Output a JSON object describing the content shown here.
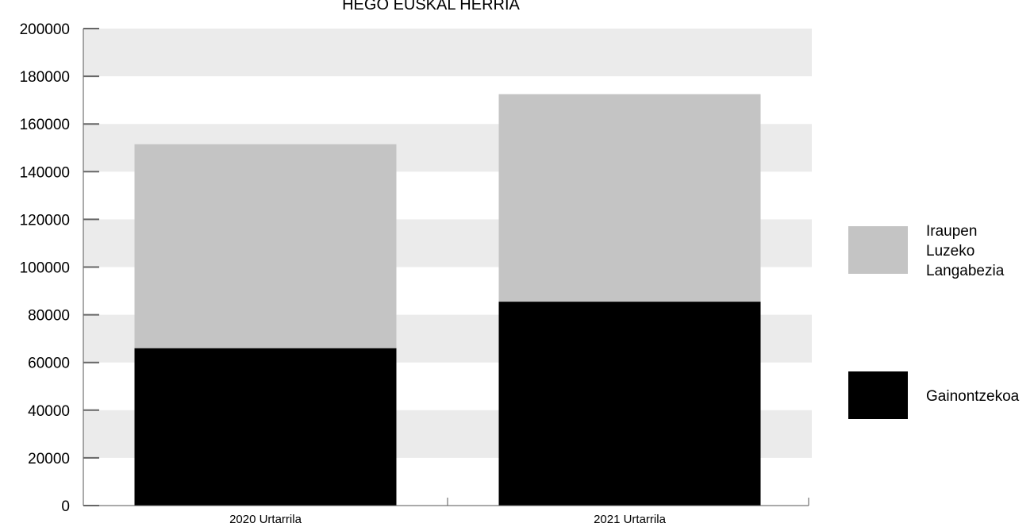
{
  "chart_data": {
    "type": "bar",
    "stacked": true,
    "title": "HEGO EUSKAL HERRIA",
    "categories": [
      "2020 Urtarrila",
      "2021 Urtarrila"
    ],
    "series": [
      {
        "name": "Gainontzekoa",
        "values": [
          66000,
          85500
        ],
        "color": "#000000"
      },
      {
        "name": "Iraupen Luzeko Langabezia",
        "legend_lines": [
          "Iraupen",
          "Luzeko",
          "Langabezia"
        ],
        "values": [
          85500,
          87000
        ],
        "color": "#c4c4c4"
      }
    ],
    "ylim": [
      0,
      200000
    ],
    "yticks": [
      0,
      20000,
      40000,
      60000,
      80000,
      100000,
      120000,
      140000,
      160000,
      180000,
      200000
    ],
    "band_color": "#ebebeb",
    "legend_position": "right"
  }
}
